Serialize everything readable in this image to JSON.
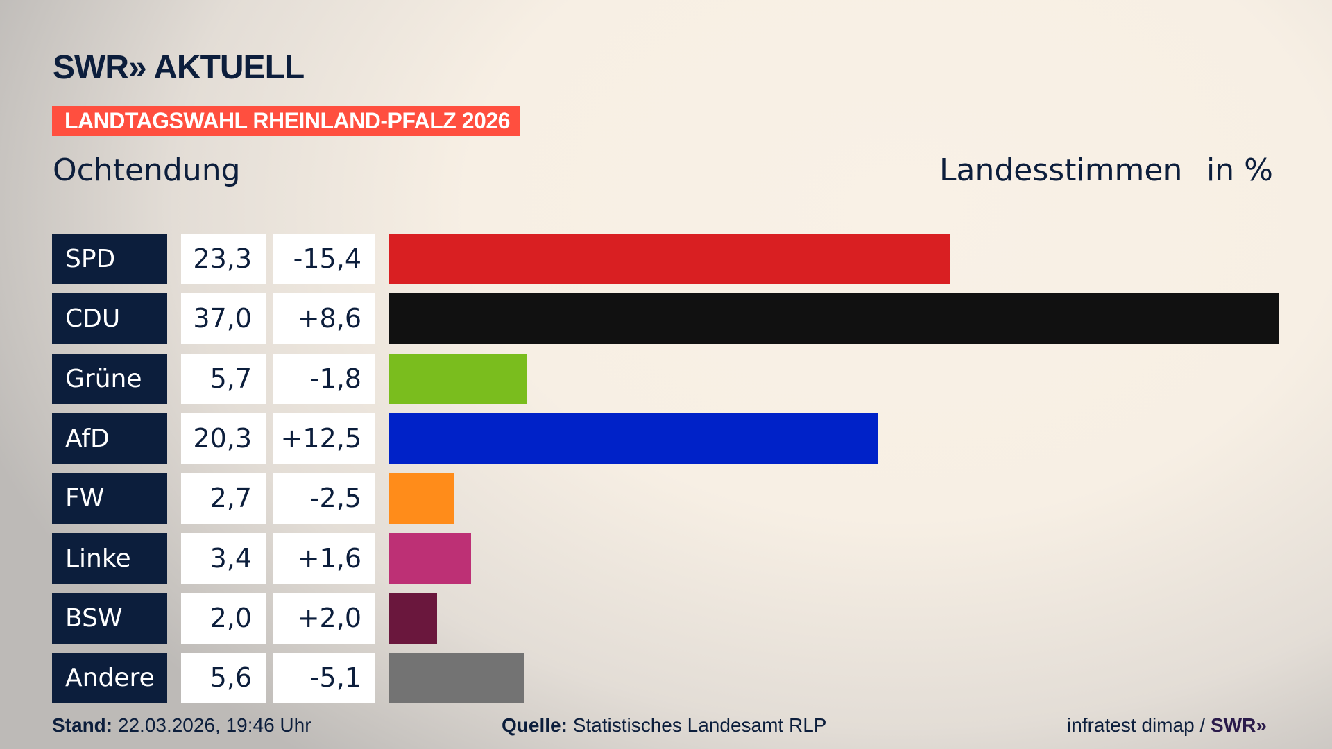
{
  "header": {
    "logo": "SWR» AKTUELL",
    "banner": "LANDTAGSWAHL RHEINLAND-PFALZ 2026",
    "place": "Ochtendung",
    "vote_type": "Landesstimmen",
    "unit": "in %"
  },
  "colors": {
    "navy": "#0c1e3c",
    "banner": "#ff4f3f"
  },
  "chart_data": {
    "type": "bar",
    "orientation": "horizontal",
    "categories": [
      "SPD",
      "CDU",
      "Grüne",
      "AfD",
      "FW",
      "Linke",
      "BSW",
      "Andere"
    ],
    "values": [
      23.3,
      37.0,
      5.7,
      20.3,
      2.7,
      3.4,
      2.0,
      5.6
    ],
    "value_labels": [
      "23,3",
      "37,0",
      "5,7",
      "20,3",
      "2,7",
      "3,4",
      "2,0",
      "5,6"
    ],
    "changes": [
      -15.4,
      8.6,
      -1.8,
      12.5,
      -2.5,
      1.6,
      2.0,
      -5.1
    ],
    "change_labels": [
      "-15,4",
      "+8,6",
      "-1,8",
      "+12,5",
      "-2,5",
      "+1,6",
      "+2,0",
      "-5,1"
    ],
    "bar_colors": [
      "#d91f22",
      "#111111",
      "#7abd1e",
      "#0022c8",
      "#ff8c1a",
      "#bd3075",
      "#6a173d",
      "#737373"
    ],
    "xlim": [
      0,
      37.0
    ],
    "grid": false
  },
  "footer": {
    "stand_label": "Stand:",
    "stand_value": "22.03.2026, 19:46 Uhr",
    "source_label": "Quelle:",
    "source_value": "Statistisches Landesamt RLP",
    "credit": "infratest dimap /",
    "credit_logo": "SWR»"
  }
}
